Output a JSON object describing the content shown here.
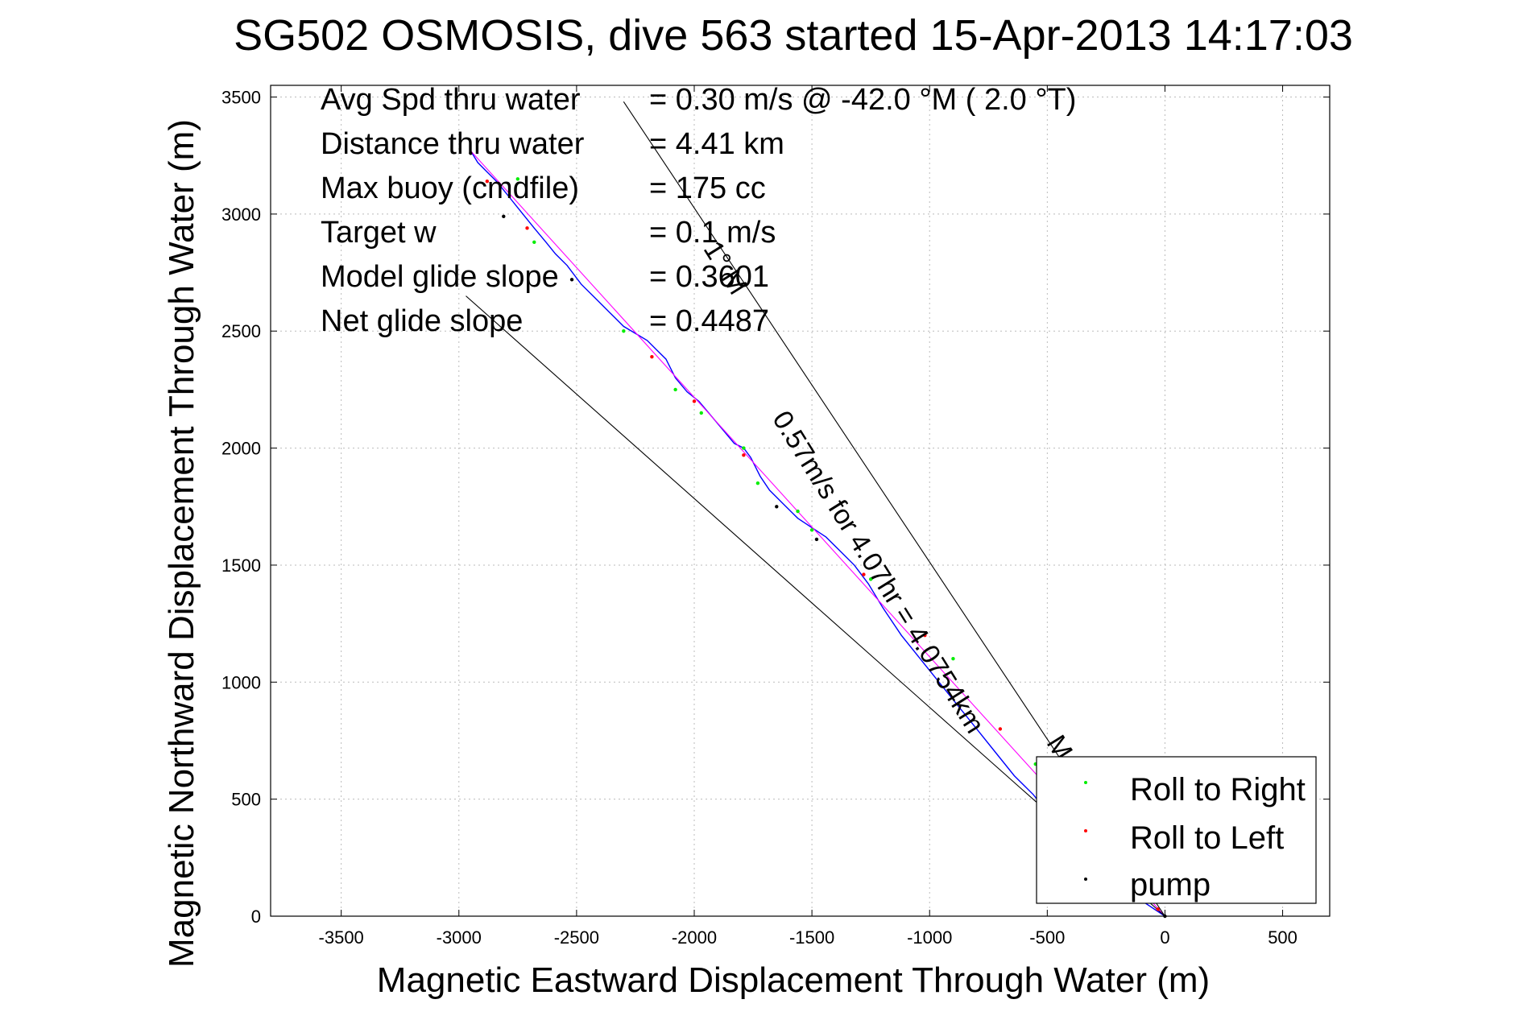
{
  "chart_data": {
    "type": "line",
    "title": "SG502 OSMOSIS, dive 563 started 15-Apr-2013 14:17:03",
    "xlabel": "Magnetic Eastward Displacement Through Water (m)",
    "ylabel": "Magnetic Northward Displacement Through Water (m)",
    "xlim": [
      -3800,
      700
    ],
    "ylim": [
      0,
      3550
    ],
    "xticks": [
      -3500,
      -3000,
      -2500,
      -2000,
      -1500,
      -1000,
      -500,
      0,
      500
    ],
    "yticks": [
      0,
      500,
      1000,
      1500,
      2000,
      2500,
      3000,
      3500
    ],
    "grid": true,
    "info_lines": [
      {
        "label": "Avg Spd thru water",
        "value": "=  0.30 m/s @ -42.0 °M (  2.0 °T)"
      },
      {
        "label": "Distance thru water",
        "value": "=  4.41 km"
      },
      {
        "label": "Max buoy (cmdfile)",
        "value": "= 175 cc"
      },
      {
        "label": "Target w",
        "value": "= 0.1 m/s"
      },
      {
        "label": "Model glide slope",
        "value": "= 0.3601"
      },
      {
        "label": "Net glide slope",
        "value": "= 0.4487"
      }
    ],
    "rotated_labels": [
      {
        "text": "0.57m/s for 4.07hr = 4.0754km",
        "x": -1250,
        "y": 1450,
        "angle_deg": 58
      },
      {
        "text": "1° M",
        "x": -1900,
        "y": 2750,
        "angle_deg": 58
      },
      {
        "text": "M",
        "x": -480,
        "y": 700,
        "angle_deg": 58
      }
    ],
    "series": [
      {
        "name": "track",
        "color": "#0000ff",
        "x": [
          0,
          -120,
          -250,
          -380,
          -480,
          -560,
          -640,
          -720,
          -800,
          -880,
          -960,
          -1040,
          -1120,
          -1200,
          -1260,
          -1320,
          -1380,
          -1440,
          -1500,
          -1560,
          -1620,
          -1680,
          -1720,
          -1760,
          -1790,
          -1830,
          -1880,
          -1930,
          -1980,
          -2030,
          -2080,
          -2120,
          -2160,
          -2200,
          -2250,
          -2300,
          -2360,
          -2420,
          -2480,
          -2540,
          -2590,
          -2630,
          -2680,
          -2720,
          -2760,
          -2800,
          -2840,
          -2880,
          -2920,
          -2950
        ],
        "y": [
          0,
          80,
          200,
          320,
          420,
          520,
          600,
          700,
          800,
          900,
          1000,
          1100,
          1200,
          1320,
          1420,
          1500,
          1560,
          1620,
          1660,
          1700,
          1760,
          1820,
          1880,
          1960,
          2000,
          2020,
          2080,
          2140,
          2200,
          2240,
          2300,
          2380,
          2420,
          2460,
          2490,
          2520,
          2580,
          2640,
          2700,
          2780,
          2830,
          2880,
          2940,
          2990,
          3040,
          3090,
          3140,
          3180,
          3220,
          3270
        ]
      },
      {
        "name": "dive heading line",
        "color": "#ff00ff",
        "x": [
          0,
          -2950
        ],
        "y": [
          0,
          3270
        ]
      },
      {
        "name": "envelope line 1",
        "color": "#000000",
        "x": [
          0,
          -2970
        ],
        "y": [
          0,
          2650
        ]
      },
      {
        "name": "envelope line 2",
        "color": "#000000",
        "x": [
          0,
          -2300
        ],
        "y": [
          0,
          3480
        ]
      }
    ],
    "markers": [
      {
        "name": "Roll to Right",
        "color": "#00ee00",
        "x": [
          -2750,
          -2680,
          -2300,
          -2080,
          -1970,
          -1790,
          -1730,
          -1560,
          -1500,
          -1250,
          -900,
          -550,
          -60
        ],
        "y": [
          3150,
          2880,
          2500,
          2250,
          2150,
          2000,
          1850,
          1730,
          1650,
          1440,
          1100,
          650,
          60
        ]
      },
      {
        "name": "Roll to Left",
        "color": "#ff0000",
        "x": [
          -2880,
          -2710,
          -2180,
          -2000,
          -1790,
          -1280,
          -1020,
          -700,
          -350,
          -30
        ],
        "y": [
          3140,
          2940,
          2390,
          2200,
          1970,
          1460,
          1200,
          800,
          450,
          30
        ]
      },
      {
        "name": "pump",
        "color": "#000000",
        "x": [
          -2950,
          -2810,
          -2520,
          -1650,
          -1480,
          -400,
          0
        ],
        "y": [
          3260,
          2990,
          2720,
          1750,
          1610,
          400,
          0
        ]
      }
    ],
    "legend": {
      "placement": "bottom-right",
      "entries": [
        {
          "label": "Roll to Right",
          "color": "#00ee00"
        },
        {
          "label": "Roll to Left",
          "color": "#ff0000"
        },
        {
          "label": "pump",
          "color": "#000000"
        }
      ]
    }
  }
}
